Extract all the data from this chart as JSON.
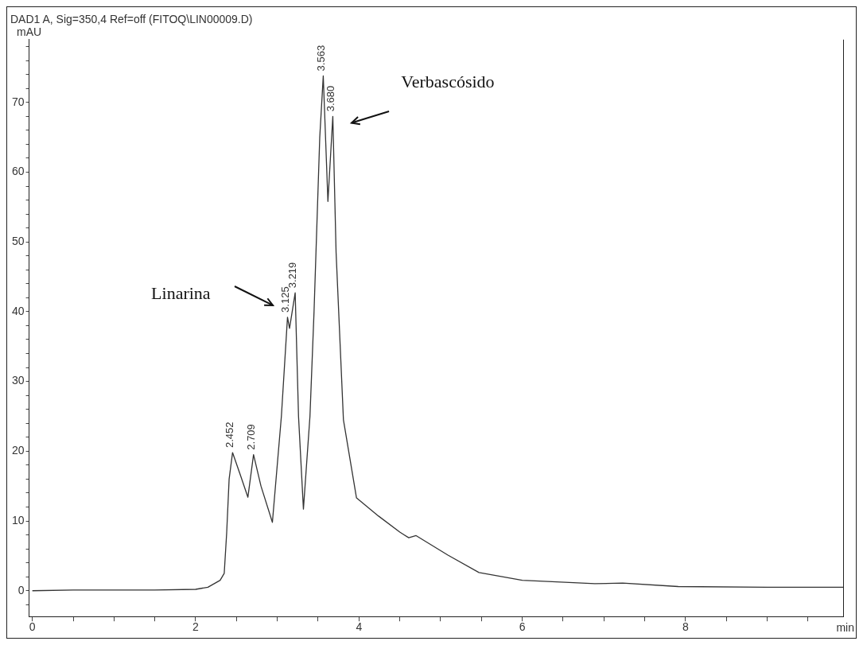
{
  "chart_data": {
    "type": "line",
    "title": "DAD1 A, Sig=350,4 Ref=off (FITOQ\\LIN00009.D)",
    "xlabel": "min",
    "ylabel": "mAU",
    "x": [
      0,
      0.5,
      1,
      1.5,
      2.0,
      2.15,
      2.3,
      2.35,
      2.38,
      2.41,
      2.452,
      2.55,
      2.64,
      2.709,
      2.8,
      2.94,
      3.05,
      3.125,
      3.15,
      3.219,
      3.26,
      3.32,
      3.4,
      3.45,
      3.52,
      3.563,
      3.62,
      3.68,
      3.72,
      3.81,
      3.97,
      4.24,
      4.5,
      4.61,
      4.7,
      5.09,
      5.47,
      6.0,
      6.89,
      7.23,
      7.91,
      9.0,
      9.93
    ],
    "series": [
      {
        "color": "#333333",
        "values": [
          0,
          0.1,
          0.1,
          0.1,
          0.2,
          0.5,
          1.5,
          2.5,
          8.3,
          16,
          19.8,
          16.5,
          13.4,
          19.5,
          15,
          9.8,
          25,
          39.2,
          37.6,
          42.7,
          25,
          11.7,
          25,
          40,
          65,
          73.8,
          55.8,
          68.0,
          48.5,
          24.5,
          13.3,
          10.7,
          8.4,
          7.6,
          7.9,
          5.1,
          2.6,
          1.5,
          1.0,
          1.1,
          0.6,
          0.5,
          0.5
        ]
      }
    ],
    "xlim": [
      -0.04,
      9.93
    ],
    "ylim": [
      -3.7,
      79
    ],
    "xticks": [
      0,
      {
        "value": 0.5,
        "label": null
      },
      {
        "value": 1,
        "label": null
      },
      {
        "value": 1.5,
        "label": null
      },
      2,
      {
        "value": 2.5,
        "label": null
      },
      {
        "value": 3,
        "label": null
      },
      {
        "value": 3.5,
        "label": null
      },
      4,
      {
        "value": 4.5,
        "label": null
      },
      {
        "value": 5,
        "label": null
      },
      {
        "value": 5.5,
        "label": null
      },
      6,
      {
        "value": 6.5,
        "label": null
      },
      {
        "value": 7,
        "label": null
      },
      {
        "value": 7.5,
        "label": null
      },
      8,
      {
        "value": 8.5,
        "label": null
      },
      {
        "value": 9,
        "label": null
      },
      {
        "value": 9.5,
        "label": null
      }
    ],
    "yticks": [
      {
        "value": -2,
        "label": null
      },
      0,
      {
        "value": 2,
        "label": null
      },
      {
        "value": 4,
        "label": null
      },
      {
        "value": 6,
        "label": null
      },
      {
        "value": 8,
        "label": null
      },
      10,
      {
        "value": 12,
        "label": null
      },
      {
        "value": 14,
        "label": null
      },
      {
        "value": 16,
        "label": null
      },
      {
        "value": 18,
        "label": null
      },
      20,
      {
        "value": 22,
        "label": null
      },
      {
        "value": 24,
        "label": null
      },
      {
        "value": 26,
        "label": null
      },
      {
        "value": 28,
        "label": null
      },
      30,
      {
        "value": 32,
        "label": null
      },
      {
        "value": 34,
        "label": null
      },
      {
        "value": 36,
        "label": null
      },
      {
        "value": 38,
        "label": null
      },
      40,
      {
        "value": 42,
        "label": null
      },
      {
        "value": 44,
        "label": null
      },
      {
        "value": 46,
        "label": null
      },
      {
        "value": 48,
        "label": null
      },
      50,
      {
        "value": 52,
        "label": null
      },
      {
        "value": 54,
        "label": null
      },
      {
        "value": 56,
        "label": null
      },
      {
        "value": 58,
        "label": null
      },
      60,
      {
        "value": 62,
        "label": null
      },
      {
        "value": 64,
        "label": null
      },
      {
        "value": 66,
        "label": null
      },
      {
        "value": 68,
        "label": null
      },
      70,
      {
        "value": 72,
        "label": null
      },
      {
        "value": 74,
        "label": null
      },
      {
        "value": 76,
        "label": null
      },
      {
        "value": 78,
        "label": null
      }
    ],
    "annotations": [
      {
        "text": "2.452",
        "x": 2.452,
        "y": 19.8
      },
      {
        "text": "2.709",
        "x": 2.709,
        "y": 19.5
      },
      {
        "text": "3.125",
        "x": 3.125,
        "y": 39.2
      },
      {
        "text": "3.219",
        "x": 3.219,
        "y": 42.7
      },
      {
        "text": "3.563",
        "x": 3.563,
        "y": 73.8
      },
      {
        "text": "3.680",
        "x": 3.68,
        "y": 68.0
      },
      "Linarina",
      "Verbascósido"
    ]
  }
}
